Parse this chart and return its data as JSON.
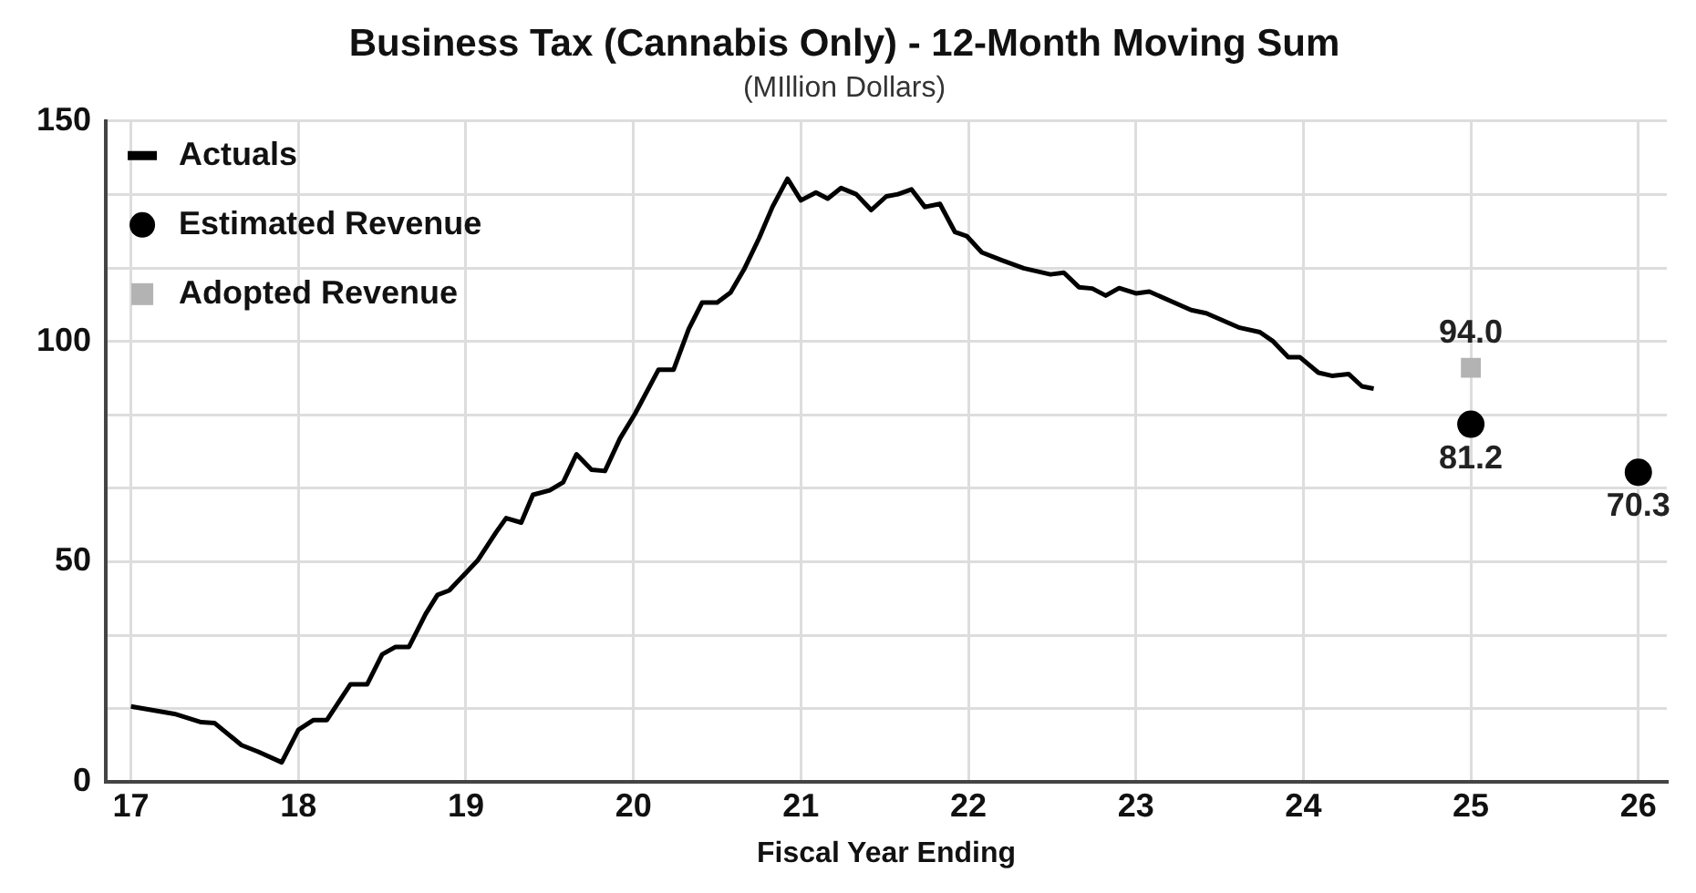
{
  "chart_data": {
    "type": "line",
    "title": "Business Tax (Cannabis Only) - 12-Month Moving Sum",
    "subtitle": "(MIllion Dollars)",
    "xlabel": "Fiscal Year Ending",
    "xlim": [
      16.85,
      26.17
    ],
    "xticks": [
      17,
      18,
      19,
      20,
      21,
      22,
      23,
      24,
      25,
      26
    ],
    "ylim": [
      0,
      150
    ],
    "yticks": [
      0,
      {
        "value": 16.67,
        "label": null
      },
      {
        "value": 33.33,
        "label": null
      },
      50,
      {
        "value": 66.67,
        "label": null
      },
      {
        "value": 83.33,
        "label": null
      },
      100,
      {
        "value": 116.67,
        "label": null
      },
      {
        "value": 133.33,
        "label": null
      },
      150
    ],
    "grid": true,
    "legend": "top left",
    "series": [
      {
        "name": "Actuals",
        "color": "#000000",
        "marker": "none",
        "line_style": "solid",
        "x": [
          17.0,
          17.26,
          17.42,
          17.5,
          17.66,
          17.76,
          17.9,
          18.0,
          18.09,
          18.17,
          18.31,
          18.41,
          18.5,
          18.58,
          18.66,
          18.76,
          18.83,
          18.9,
          19.07,
          19.18,
          19.24,
          19.33,
          19.4,
          19.5,
          19.58,
          19.66,
          19.75,
          19.83,
          19.92,
          20.01,
          20.15,
          20.24,
          20.33,
          20.41,
          20.5,
          20.58,
          20.66,
          20.75,
          20.83,
          20.92,
          21.0,
          21.09,
          21.16,
          21.24,
          21.33,
          21.42,
          21.51,
          21.58,
          21.66,
          21.74,
          21.83,
          21.92,
          21.99,
          22.08,
          22.2,
          22.33,
          22.49,
          22.57,
          22.66,
          22.74,
          22.82,
          22.9,
          23.0,
          23.08,
          23.33,
          23.42,
          23.62,
          23.74,
          23.82,
          23.91,
          23.98,
          24.09,
          24.17,
          24.27,
          24.35,
          24.42
        ],
        "values": [
          17.2,
          15.5,
          13.6,
          13.4,
          8.4,
          6.9,
          4.5,
          11.9,
          14.1,
          14.1,
          22.2,
          22.2,
          29.0,
          30.7,
          30.7,
          38.2,
          42.5,
          43.5,
          50.3,
          56.7,
          59.9,
          58.9,
          65.2,
          66.2,
          68.0,
          74.4,
          70.9,
          70.6,
          78.0,
          83.6,
          93.6,
          93.6,
          102.8,
          108.8,
          108.8,
          111.1,
          116.3,
          123.4,
          130.5,
          136.9,
          132.0,
          133.8,
          132.4,
          134.8,
          133.4,
          129.8,
          132.9,
          133.4,
          134.5,
          130.5,
          131.2,
          124.8,
          123.9,
          120.2,
          118.4,
          116.6,
          115.2,
          115.6,
          112.3,
          112.0,
          110.4,
          112.1,
          110.9,
          111.3,
          107.1,
          106.4,
          103.1,
          102.1,
          100.0,
          96.4,
          96.4,
          92.9,
          92.2,
          92.6,
          89.8,
          89.3
        ]
      },
      {
        "name": "Estimated Revenue",
        "type": "scatter",
        "color": "#000000",
        "marker": "circle",
        "x": [
          25,
          26
        ],
        "values": [
          81.2,
          70.3
        ],
        "value_labels": [
          "81.2",
          "70.3"
        ]
      },
      {
        "name": "Adopted Revenue",
        "type": "scatter",
        "color": "#b3b3b3",
        "marker": "square",
        "x": [
          25
        ],
        "values": [
          94.0
        ],
        "value_labels": [
          "94.0"
        ]
      }
    ]
  }
}
